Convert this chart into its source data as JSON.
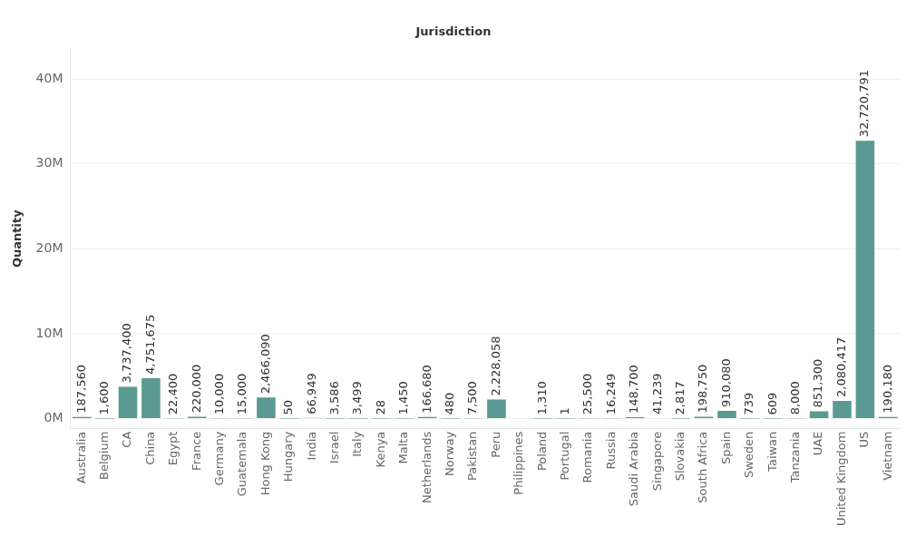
{
  "chart_data": {
    "type": "bar",
    "xlabel": "Jurisdiction",
    "ylabel": "Quantity",
    "categories": [
      "Australia",
      "Belgium",
      "CA",
      "China",
      "Egypt",
      "France",
      "Germany",
      "Guatemala",
      "Hong Kong",
      "Hungary",
      "India",
      "Israel",
      "Italy",
      "Kenya",
      "Malta",
      "Netherlands",
      "Norway",
      "Pakistan",
      "Peru",
      "Philippines",
      "Poland",
      "Portugal",
      "Romania",
      "Russia",
      "Saudi Arabia",
      "Singapore",
      "Slovakia",
      "South Africa",
      "Spain",
      "Sweden",
      "Taiwan",
      "Tanzania",
      "UAE",
      "United Kingdom",
      "US",
      "Vietnam"
    ],
    "values": [
      187560,
      1600,
      3737400,
      4751675,
      22400,
      220000,
      10000,
      15000,
      2466090,
      50,
      66949,
      3586,
      3499,
      28,
      1450,
      166680,
      480,
      7500,
      2228058,
      null,
      1310,
      1,
      25500,
      16249,
      148700,
      41239,
      2817,
      198750,
      910080,
      739,
      609,
      8000,
      851300,
      2080417,
      32720791,
      190180
    ],
    "value_labels": [
      "187,560",
      "1,600",
      "3,737,400",
      "4,751,675",
      "22,400",
      "220,000",
      "10,000",
      "15,000",
      "2,466,090",
      "50",
      "66,949",
      "3,586",
      "3,499",
      "28",
      "1,450",
      "166,680",
      "480",
      "7,500",
      "2,228,058",
      null,
      "1,310",
      "1",
      "25,500",
      "16,249",
      "148,700",
      "41,239",
      "2,817",
      "198,750",
      "910,080",
      "739",
      "609",
      "8,000",
      "851,300",
      "2,080,417",
      "32,720,791",
      "190,180"
    ],
    "color": "#5b9a92",
    "ylim": [
      -1200000,
      43600000
    ],
    "yticks": [
      {
        "value": 0,
        "label": "0M"
      },
      {
        "value": 10000000,
        "label": "10M"
      },
      {
        "value": 20000000,
        "label": "20M"
      },
      {
        "value": 30000000,
        "label": "30M"
      },
      {
        "value": 40000000,
        "label": "40M"
      }
    ],
    "grid": "y",
    "legend": false
  }
}
